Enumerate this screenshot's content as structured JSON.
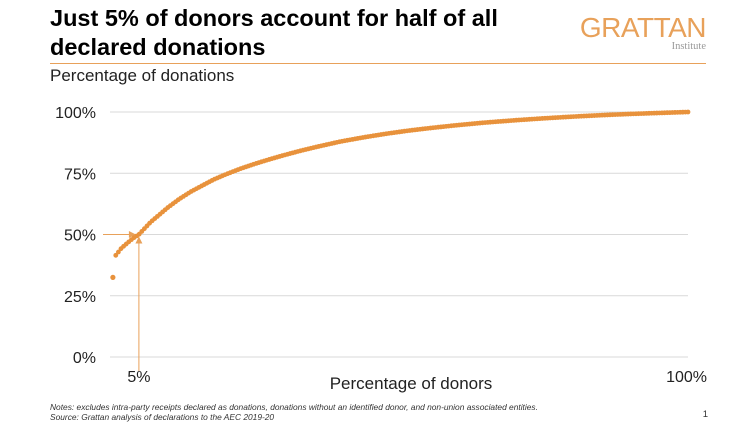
{
  "header": {
    "title_line1": "Just 5% of donors account for half of all",
    "title_line2": "declared donations",
    "logo": "GRATTAN",
    "logo_sub": "Institute",
    "subtitle": "Percentage of donations"
  },
  "footer": {
    "note": "Notes: excludes intra-party receipts declared as donations, donations without an identified donor, and non-union associated entities.",
    "source": "Source: Grattan analysis of declarations to the AEC 2019-20",
    "page_number": "1"
  },
  "colors": {
    "accent": "#e8a15a",
    "series": "#e8923c",
    "grid": "#d9d9d9",
    "arrow": "#e8a15a"
  },
  "chart_data": {
    "type": "scatter",
    "title": "Just 5% of donors account for half of all declared donations",
    "ylabel": "Percentage of donations",
    "xlabel": "Percentage of donors",
    "xlim": [
      0,
      100
    ],
    "ylim": [
      0,
      100
    ],
    "y_ticks": [
      {
        "value": 100,
        "label": "100%"
      },
      {
        "value": 75,
        "label": "75%"
      },
      {
        "value": 50,
        "label": "50%"
      },
      {
        "value": 25,
        "label": "25%"
      },
      {
        "value": 0,
        "label": "0%"
      }
    ],
    "x_ticks": [
      {
        "value": 5,
        "label": "5%"
      },
      {
        "value": 100,
        "label": "100%"
      }
    ],
    "grid": true,
    "points_x": [
      0.5,
      1,
      1.5,
      2,
      3,
      4,
      5,
      6,
      7,
      8,
      9,
      10,
      12,
      14,
      16,
      18,
      20,
      22.5,
      25,
      27.5,
      30,
      33,
      36,
      40,
      44,
      48,
      52,
      56,
      60,
      65,
      70,
      75,
      80,
      85,
      90,
      95,
      100
    ],
    "points_y": [
      32.5,
      41.5,
      43,
      44.5,
      46.5,
      48.5,
      50,
      52.5,
      55,
      57,
      59,
      61,
      64.5,
      67.5,
      70,
      72.5,
      74.5,
      76.8,
      78.8,
      80.6,
      82.3,
      84.2,
      85.9,
      88,
      89.7,
      91.2,
      92.5,
      93.6,
      94.6,
      95.7,
      96.6,
      97.4,
      98.1,
      98.7,
      99.2,
      99.6,
      100
    ],
    "annotation": {
      "x": 5,
      "y": 50,
      "note": "arrows marking 5% of donors and 50% of donations"
    }
  }
}
